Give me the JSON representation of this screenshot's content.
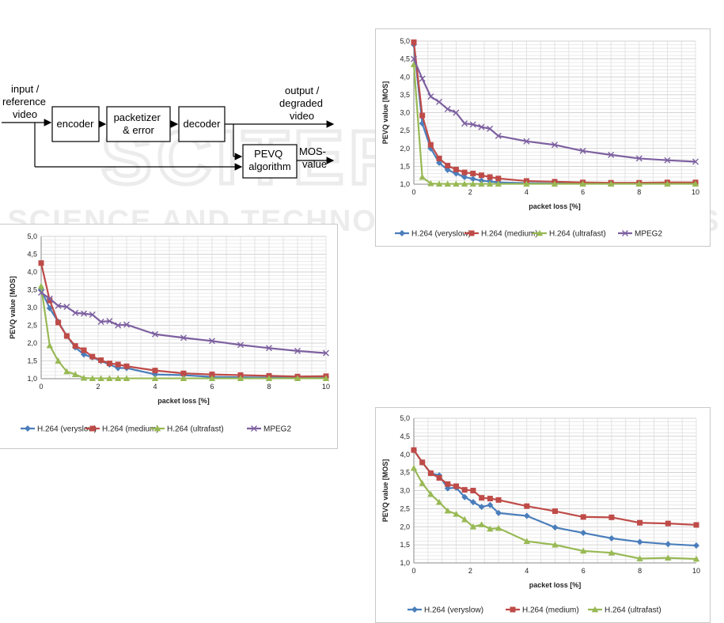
{
  "watermark": {
    "line1": "SCITEPRESS",
    "line2": "SCIENCE AND TECHNOLOGY PUBLICATIONS"
  },
  "diagram": {
    "input_label_lines": [
      "input /",
      "reference",
      "video"
    ],
    "encoder_label": "encoder",
    "packetizer_label_lines": [
      "packetizer",
      "& error"
    ],
    "decoder_label": "decoder",
    "output_label_lines": [
      "output /",
      "degraded",
      "video"
    ],
    "pevq_label_lines": [
      "PEVQ",
      "algorithm"
    ],
    "mos_label_lines": [
      "MOS-",
      "value"
    ]
  },
  "colors": {
    "veryslow": "#4a7ebb",
    "medium": "#be4b48",
    "ultrafast": "#98b954",
    "mpeg2": "#7d60a0"
  },
  "chart_data": [
    {
      "type": "line",
      "title": "",
      "xlabel": "packet loss [%]",
      "ylabel": "PEVQ value [MOS]",
      "xlim": [
        0,
        10
      ],
      "ylim": [
        1.0,
        5.0
      ],
      "x_ticks": [
        "0",
        "2",
        "4",
        "6",
        "8",
        "10"
      ],
      "y_ticks": [
        "1,0",
        "1,5",
        "2,0",
        "2,5",
        "3,0",
        "3,5",
        "4,0",
        "4,5",
        "5,0"
      ],
      "grid": true,
      "legend_position": "bottom",
      "series": [
        {
          "name": "H.264 (veryslow)",
          "color_key": "veryslow",
          "marker": "diamond",
          "x": [
            0,
            0.3,
            0.6,
            0.9,
            1.2,
            1.5,
            1.8,
            2.1,
            2.4,
            2.7,
            3,
            4,
            5,
            6,
            7,
            8,
            9,
            10
          ],
          "y": [
            4.9,
            2.7,
            2.0,
            1.6,
            1.4,
            1.3,
            1.2,
            1.15,
            1.1,
            1.08,
            1.05,
            1.03,
            1.02,
            1.02,
            1.02,
            1.02,
            1.02,
            1.02
          ]
        },
        {
          "name": "H.264 (medium)",
          "color_key": "medium",
          "marker": "square",
          "x": [
            0,
            0.3,
            0.6,
            0.9,
            1.2,
            1.5,
            1.8,
            2.1,
            2.4,
            2.7,
            3,
            4,
            5,
            6,
            7,
            8,
            9,
            10
          ],
          "y": [
            4.97,
            2.92,
            2.1,
            1.72,
            1.52,
            1.41,
            1.33,
            1.3,
            1.25,
            1.2,
            1.16,
            1.09,
            1.07,
            1.05,
            1.04,
            1.04,
            1.05,
            1.05
          ]
        },
        {
          "name": "H.264 (ultrafast)",
          "color_key": "ultrafast",
          "marker": "triangle",
          "x": [
            0,
            0.3,
            0.6,
            0.9,
            1.2,
            1.5,
            1.8,
            2.1,
            2.4,
            2.7,
            3,
            4,
            5,
            6,
            7,
            8,
            9,
            10
          ],
          "y": [
            4.35,
            1.2,
            1.02,
            1.01,
            1.01,
            1.01,
            1.01,
            1.01,
            1.01,
            1.01,
            1.01,
            1.01,
            1.01,
            1.01,
            1.01,
            1.01,
            1.01,
            1.01
          ]
        },
        {
          "name": "MPEG2",
          "color_key": "mpeg2",
          "marker": "x",
          "x": [
            0,
            0.3,
            0.6,
            0.9,
            1.2,
            1.5,
            1.8,
            2.1,
            2.4,
            2.7,
            3,
            4,
            5,
            6,
            7,
            8,
            9,
            10
          ],
          "y": [
            4.5,
            3.95,
            3.45,
            3.3,
            3.1,
            3.0,
            2.7,
            2.67,
            2.6,
            2.55,
            2.35,
            2.2,
            2.1,
            1.93,
            1.82,
            1.72,
            1.67,
            1.63
          ]
        }
      ]
    },
    {
      "type": "line",
      "title": "",
      "xlabel": "packet loss [%]",
      "ylabel": "PEVQ value [MOS]",
      "xlim": [
        0,
        10
      ],
      "ylim": [
        1.0,
        5.0
      ],
      "x_ticks": [
        "0",
        "2",
        "4",
        "6",
        "8",
        "10"
      ],
      "y_ticks": [
        "1,0",
        "1,5",
        "2,0",
        "2,5",
        "3,0",
        "3,5",
        "4,0",
        "4,5",
        "5,0"
      ],
      "grid": true,
      "legend_position": "bottom",
      "series": [
        {
          "name": "H.264 (veryslow)",
          "color_key": "veryslow",
          "marker": "diamond",
          "x": [
            0,
            0.3,
            0.6,
            0.9,
            1.2,
            1.5,
            1.8,
            2.1,
            2.4,
            2.7,
            3,
            4,
            5,
            6,
            7,
            8,
            9,
            10
          ],
          "y": [
            3.5,
            2.98,
            2.6,
            2.2,
            1.88,
            1.68,
            1.6,
            1.5,
            1.4,
            1.3,
            1.3,
            1.12,
            1.1,
            1.05,
            1.04,
            1.03,
            1.03,
            1.05
          ]
        },
        {
          "name": "H.264 (medium)",
          "color_key": "medium",
          "marker": "square",
          "x": [
            0,
            0.3,
            0.6,
            0.9,
            1.2,
            1.5,
            1.8,
            2.1,
            2.4,
            2.7,
            3,
            4,
            5,
            6,
            7,
            8,
            9,
            10
          ],
          "y": [
            4.25,
            3.2,
            2.58,
            2.2,
            1.92,
            1.8,
            1.62,
            1.52,
            1.43,
            1.4,
            1.35,
            1.23,
            1.15,
            1.12,
            1.1,
            1.08,
            1.06,
            1.07
          ]
        },
        {
          "name": "H.264 (ultrafast)",
          "color_key": "ultrafast",
          "marker": "triangle",
          "x": [
            0,
            0.3,
            0.6,
            0.9,
            1.2,
            1.5,
            1.8,
            2.1,
            2.4,
            2.7,
            3,
            4,
            5,
            6,
            7,
            8,
            9,
            10
          ],
          "y": [
            3.6,
            1.93,
            1.5,
            1.2,
            1.12,
            1.02,
            1.01,
            1.01,
            1.01,
            1.01,
            1.01,
            1.01,
            1.01,
            1.01,
            1.01,
            1.01,
            1.01,
            1.01
          ]
        },
        {
          "name": "MPEG2",
          "color_key": "mpeg2",
          "marker": "x",
          "x": [
            0,
            0.3,
            0.6,
            0.9,
            1.2,
            1.5,
            1.8,
            2.1,
            2.4,
            2.7,
            3,
            4,
            5,
            6,
            7,
            8,
            9,
            10
          ],
          "y": [
            3.42,
            3.25,
            3.05,
            3.02,
            2.85,
            2.83,
            2.8,
            2.6,
            2.62,
            2.5,
            2.52,
            2.25,
            2.15,
            2.06,
            1.95,
            1.86,
            1.78,
            1.72
          ]
        }
      ]
    },
    {
      "type": "line",
      "title": "",
      "xlabel": "packet loss [%]",
      "ylabel": "PEVQ value [MOS]",
      "xlim": [
        0,
        10
      ],
      "ylim": [
        1.0,
        5.0
      ],
      "x_ticks": [
        "0",
        "2",
        "4",
        "6",
        "8",
        "10"
      ],
      "y_ticks": [
        "1,0",
        "1,5",
        "2,0",
        "2,5",
        "3,0",
        "3,5",
        "4,0",
        "4,5",
        "5,0"
      ],
      "grid": true,
      "legend_position": "bottom",
      "series": [
        {
          "name": "H.264 (veryslow)",
          "color_key": "veryslow",
          "marker": "diamond",
          "x": [
            0,
            0.3,
            0.6,
            0.9,
            1.2,
            1.5,
            1.8,
            2.1,
            2.4,
            2.7,
            3,
            4,
            5,
            6,
            7,
            8,
            9,
            10
          ],
          "y": [
            4.12,
            3.78,
            3.48,
            3.42,
            3.06,
            3.08,
            2.82,
            2.68,
            2.55,
            2.6,
            2.38,
            2.3,
            1.98,
            1.83,
            1.68,
            1.58,
            1.52,
            1.48
          ]
        },
        {
          "name": "H.264 (medium)",
          "color_key": "medium",
          "marker": "square",
          "x": [
            0,
            0.3,
            0.6,
            0.9,
            1.2,
            1.5,
            1.8,
            2.1,
            2.4,
            2.7,
            3,
            4,
            5,
            6,
            7,
            8,
            9,
            10
          ],
          "y": [
            4.12,
            3.78,
            3.48,
            3.35,
            3.18,
            3.12,
            3.02,
            3.0,
            2.8,
            2.78,
            2.74,
            2.57,
            2.43,
            2.27,
            2.26,
            2.11,
            2.09,
            2.05
          ]
        },
        {
          "name": "H.264 (ultrafast)",
          "color_key": "ultrafast",
          "marker": "triangle",
          "x": [
            0,
            0.3,
            0.6,
            0.9,
            1.2,
            1.5,
            1.8,
            2.1,
            2.4,
            2.7,
            3,
            4,
            5,
            6,
            7,
            8,
            9,
            10
          ],
          "y": [
            3.62,
            3.2,
            2.9,
            2.68,
            2.44,
            2.35,
            2.2,
            2.0,
            2.06,
            1.94,
            1.96,
            1.6,
            1.5,
            1.33,
            1.28,
            1.12,
            1.14,
            1.11
          ]
        }
      ]
    }
  ]
}
